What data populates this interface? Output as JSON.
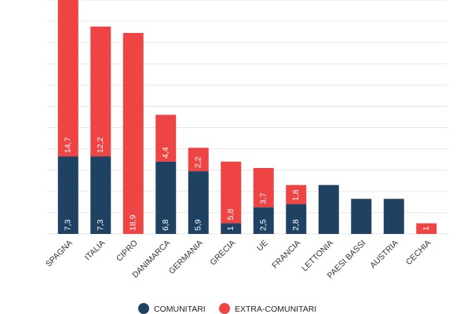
{
  "chart_data": {
    "type": "stacked_bar",
    "categories": [
      "SPAGNA",
      "ITALIA",
      "CIPRO",
      "DANIMARCA",
      "GERMANIA",
      "GRECIA",
      "UE",
      "FRANCIA",
      "LETTONIA",
      "PAESI BASSI",
      "AUSTRIA",
      "CECHIA"
    ],
    "series": [
      {
        "name": "COMUNITARI",
        "color": "#1f4263",
        "values": [
          7.3,
          7.3,
          null,
          6.8,
          5.9,
          1,
          2.5,
          2.8,
          4.6,
          3.3,
          3.3,
          null
        ],
        "value_labels": [
          "7,3",
          "7,3",
          null,
          "6,8",
          "5,9",
          "1",
          "2,5",
          "2,8",
          null,
          null,
          null,
          null
        ]
      },
      {
        "name": "EXTRA-COMUNITARI",
        "color": "#ee4444",
        "values": [
          14.7,
          12.2,
          18.9,
          4.4,
          2.2,
          5.8,
          3.7,
          1.8,
          null,
          null,
          null,
          1
        ],
        "value_labels": [
          "14,7",
          "12,2",
          "18,9",
          "4,4",
          "2,2",
          "5,8",
          "3,7",
          "1,8",
          null,
          null,
          null,
          "1"
        ]
      }
    ],
    "ylim": [
      0,
      22
    ],
    "yticks": [
      0,
      2,
      4,
      6,
      8,
      10,
      12,
      14,
      16,
      18,
      20,
      22
    ],
    "grid": true
  }
}
